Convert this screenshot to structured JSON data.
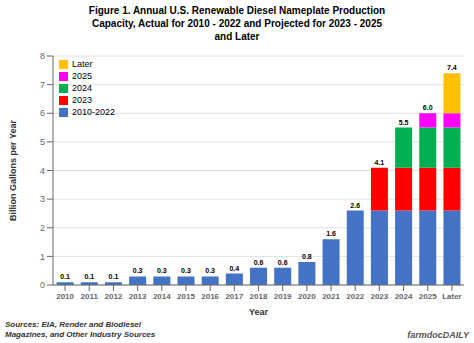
{
  "chart_data": {
    "type": "bar",
    "title": "Figure 1. Annual U.S. Renewable Diesel Nameplate Production\nCapacity, Actual for 2010 - 2022 and Projected for 2023 - 2025\nand Later",
    "xlabel": "Year",
    "ylabel": "Billion Gallons per Year",
    "footnote": "Sources: EIA, Render and Biodiesel\nMagazines, and Other Industry Sources",
    "watermark": "farmdocDAILY",
    "categories": [
      "2010",
      "2011",
      "2012",
      "2013",
      "2014",
      "2015",
      "2016",
      "2017",
      "2018",
      "2019",
      "2020",
      "2021",
      "2022",
      "2023",
      "2024",
      "2025",
      "Later"
    ],
    "series": [
      {
        "name": "2010-2022",
        "color": "#4472C4",
        "values": [
          0.1,
          0.1,
          0.1,
          0.3,
          0.3,
          0.3,
          0.3,
          0.4,
          0.6,
          0.6,
          0.8,
          1.6,
          2.6,
          2.6,
          2.6,
          2.6,
          2.6
        ]
      },
      {
        "name": "2023",
        "color": "#FF0000",
        "values": [
          0,
          0,
          0,
          0,
          0,
          0,
          0,
          0,
          0,
          0,
          0,
          0,
          0,
          1.5,
          1.5,
          1.5,
          1.5
        ]
      },
      {
        "name": "2024",
        "color": "#00B050",
        "values": [
          0,
          0,
          0,
          0,
          0,
          0,
          0,
          0,
          0,
          0,
          0,
          0,
          0,
          0,
          1.4,
          1.4,
          1.4
        ]
      },
      {
        "name": "2025",
        "color": "#FF00FF",
        "values": [
          0,
          0,
          0,
          0,
          0,
          0,
          0,
          0,
          0,
          0,
          0,
          0,
          0,
          0,
          0,
          0.5,
          0.5
        ]
      },
      {
        "name": "Later",
        "color": "#FFC000",
        "values": [
          0,
          0,
          0,
          0,
          0,
          0,
          0,
          0,
          0,
          0,
          0,
          0,
          0,
          0,
          0,
          0,
          1.4
        ]
      }
    ],
    "stacked": true,
    "totals": [
      0.1,
      0.1,
      0.1,
      0.3,
      0.3,
      0.3,
      0.3,
      0.4,
      0.6,
      0.6,
      0.8,
      1.6,
      2.6,
      4.1,
      5.5,
      6.0,
      7.4
    ],
    "total_labels": [
      "0.1",
      "0.1",
      "0.1",
      "0.3",
      "0.3",
      "0.3",
      "0.3",
      "0.4",
      "0.6",
      "0.6",
      "0.8",
      "1.6",
      "2.6",
      "4.1",
      "5.5",
      "6.0",
      "7.4"
    ],
    "ylim": [
      0,
      8
    ],
    "yticks": [
      0,
      1,
      2,
      3,
      4,
      5,
      6,
      7,
      8
    ],
    "grid": true,
    "legend": "upper left"
  }
}
